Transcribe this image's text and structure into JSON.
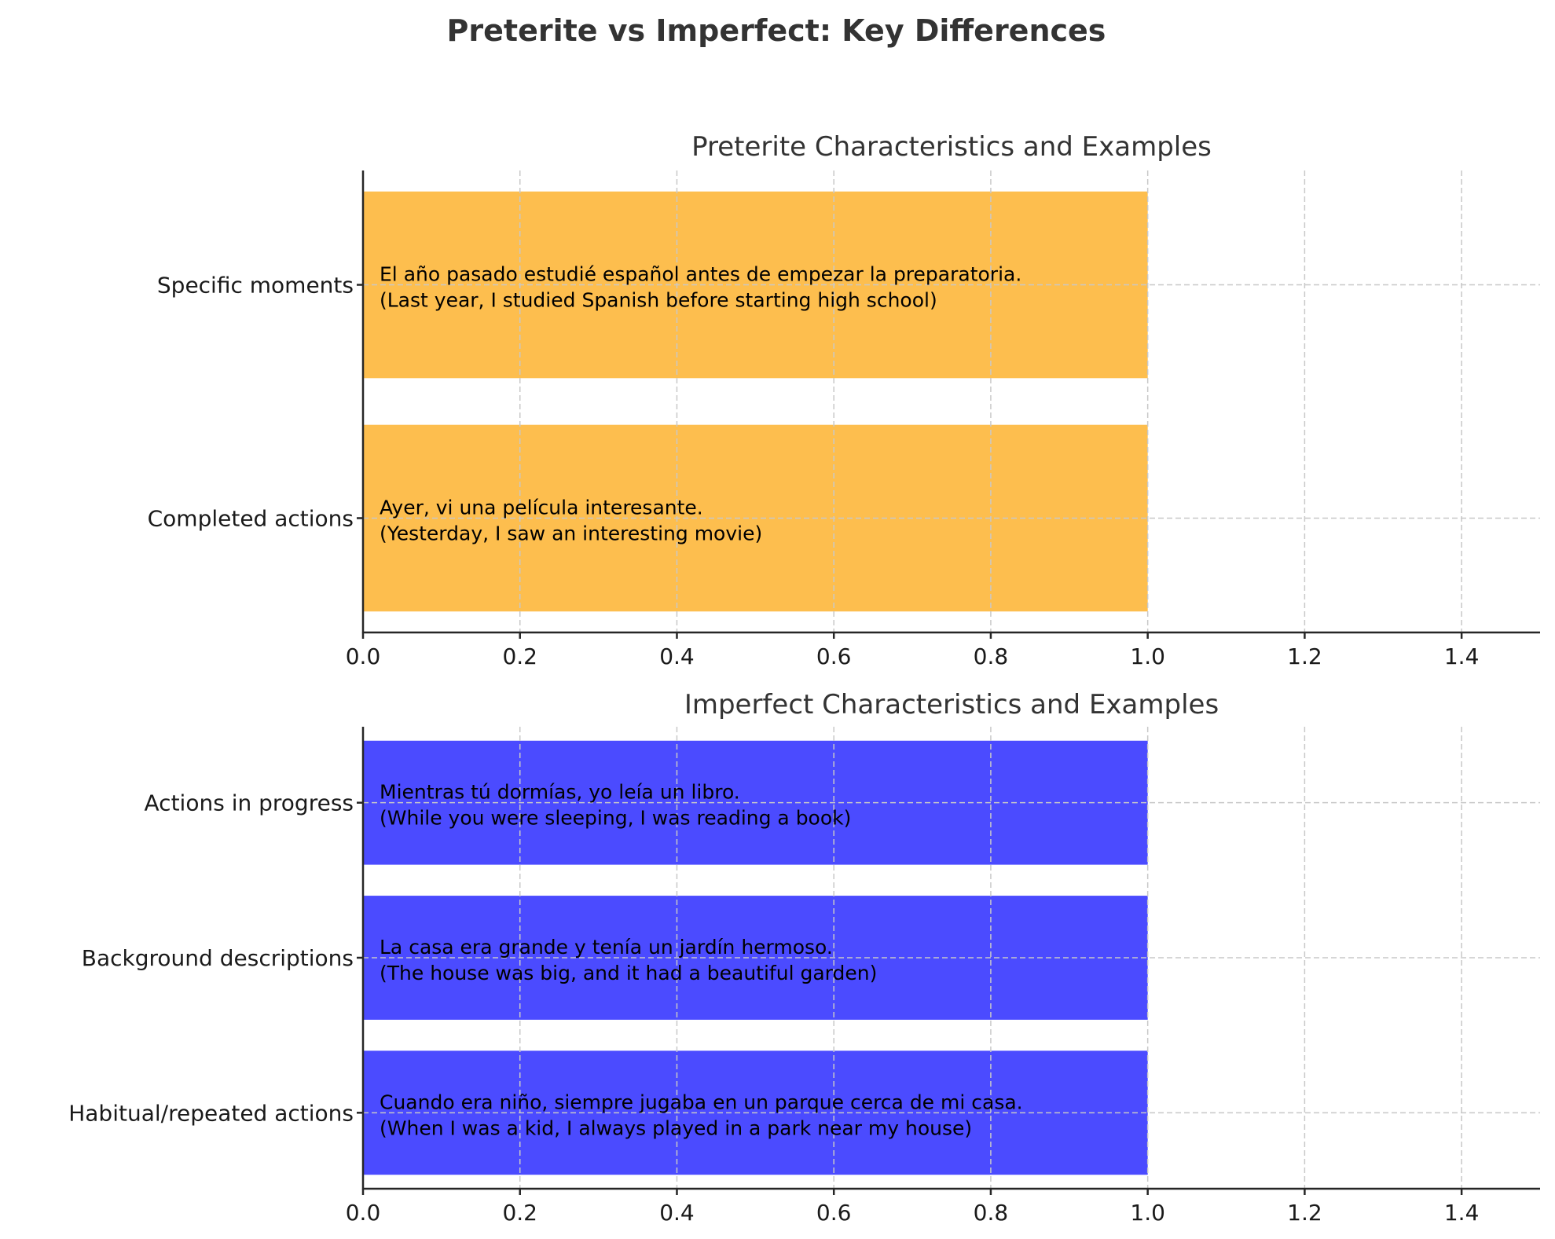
{
  "title": "Preterite vs Imperfect: Key Differences",
  "colors": {
    "preterite": "#FDBE4E",
    "imperfect": "#4B4BFF"
  },
  "chart_data": [
    {
      "type": "bar",
      "orientation": "horizontal",
      "title": "Preterite Characteristics and Examples",
      "categories": [
        "Completed actions",
        "Specific moments"
      ],
      "values": [
        1,
        1
      ],
      "annotations": [
        "Ayer, vi una película interesante.\n(Yesterday, I saw an interesting movie)",
        "El año pasado estudié español antes de empezar la preparatoria.\n(Last year, I studied Spanish before starting high school)"
      ],
      "color": "#FDBE4E",
      "xlim": [
        0,
        1.5
      ],
      "xticks": [
        "0.0",
        "0.2",
        "0.4",
        "0.6",
        "0.8",
        "1.0",
        "1.2",
        "1.4"
      ],
      "grid": true
    },
    {
      "type": "bar",
      "orientation": "horizontal",
      "title": "Imperfect Characteristics and Examples",
      "categories": [
        "Habitual/repeated actions",
        "Background descriptions",
        "Actions in progress"
      ],
      "values": [
        1,
        1,
        1
      ],
      "annotations": [
        "Cuando era niño, siempre jugaba en un parque cerca de mi casa.\n(When I was a kid, I always played in a park near my house)",
        "La casa era grande y tenía un jardín hermoso.\n(The house was big, and it had a beautiful garden)",
        "Mientras tú dormías, yo leía un libro.\n(While you were sleeping, I was reading a book)"
      ],
      "color": "#4B4BFF",
      "xlim": [
        0,
        1.5
      ],
      "xticks": [
        "0.0",
        "0.2",
        "0.4",
        "0.6",
        "0.8",
        "1.0",
        "1.2",
        "1.4"
      ],
      "grid": true
    }
  ]
}
